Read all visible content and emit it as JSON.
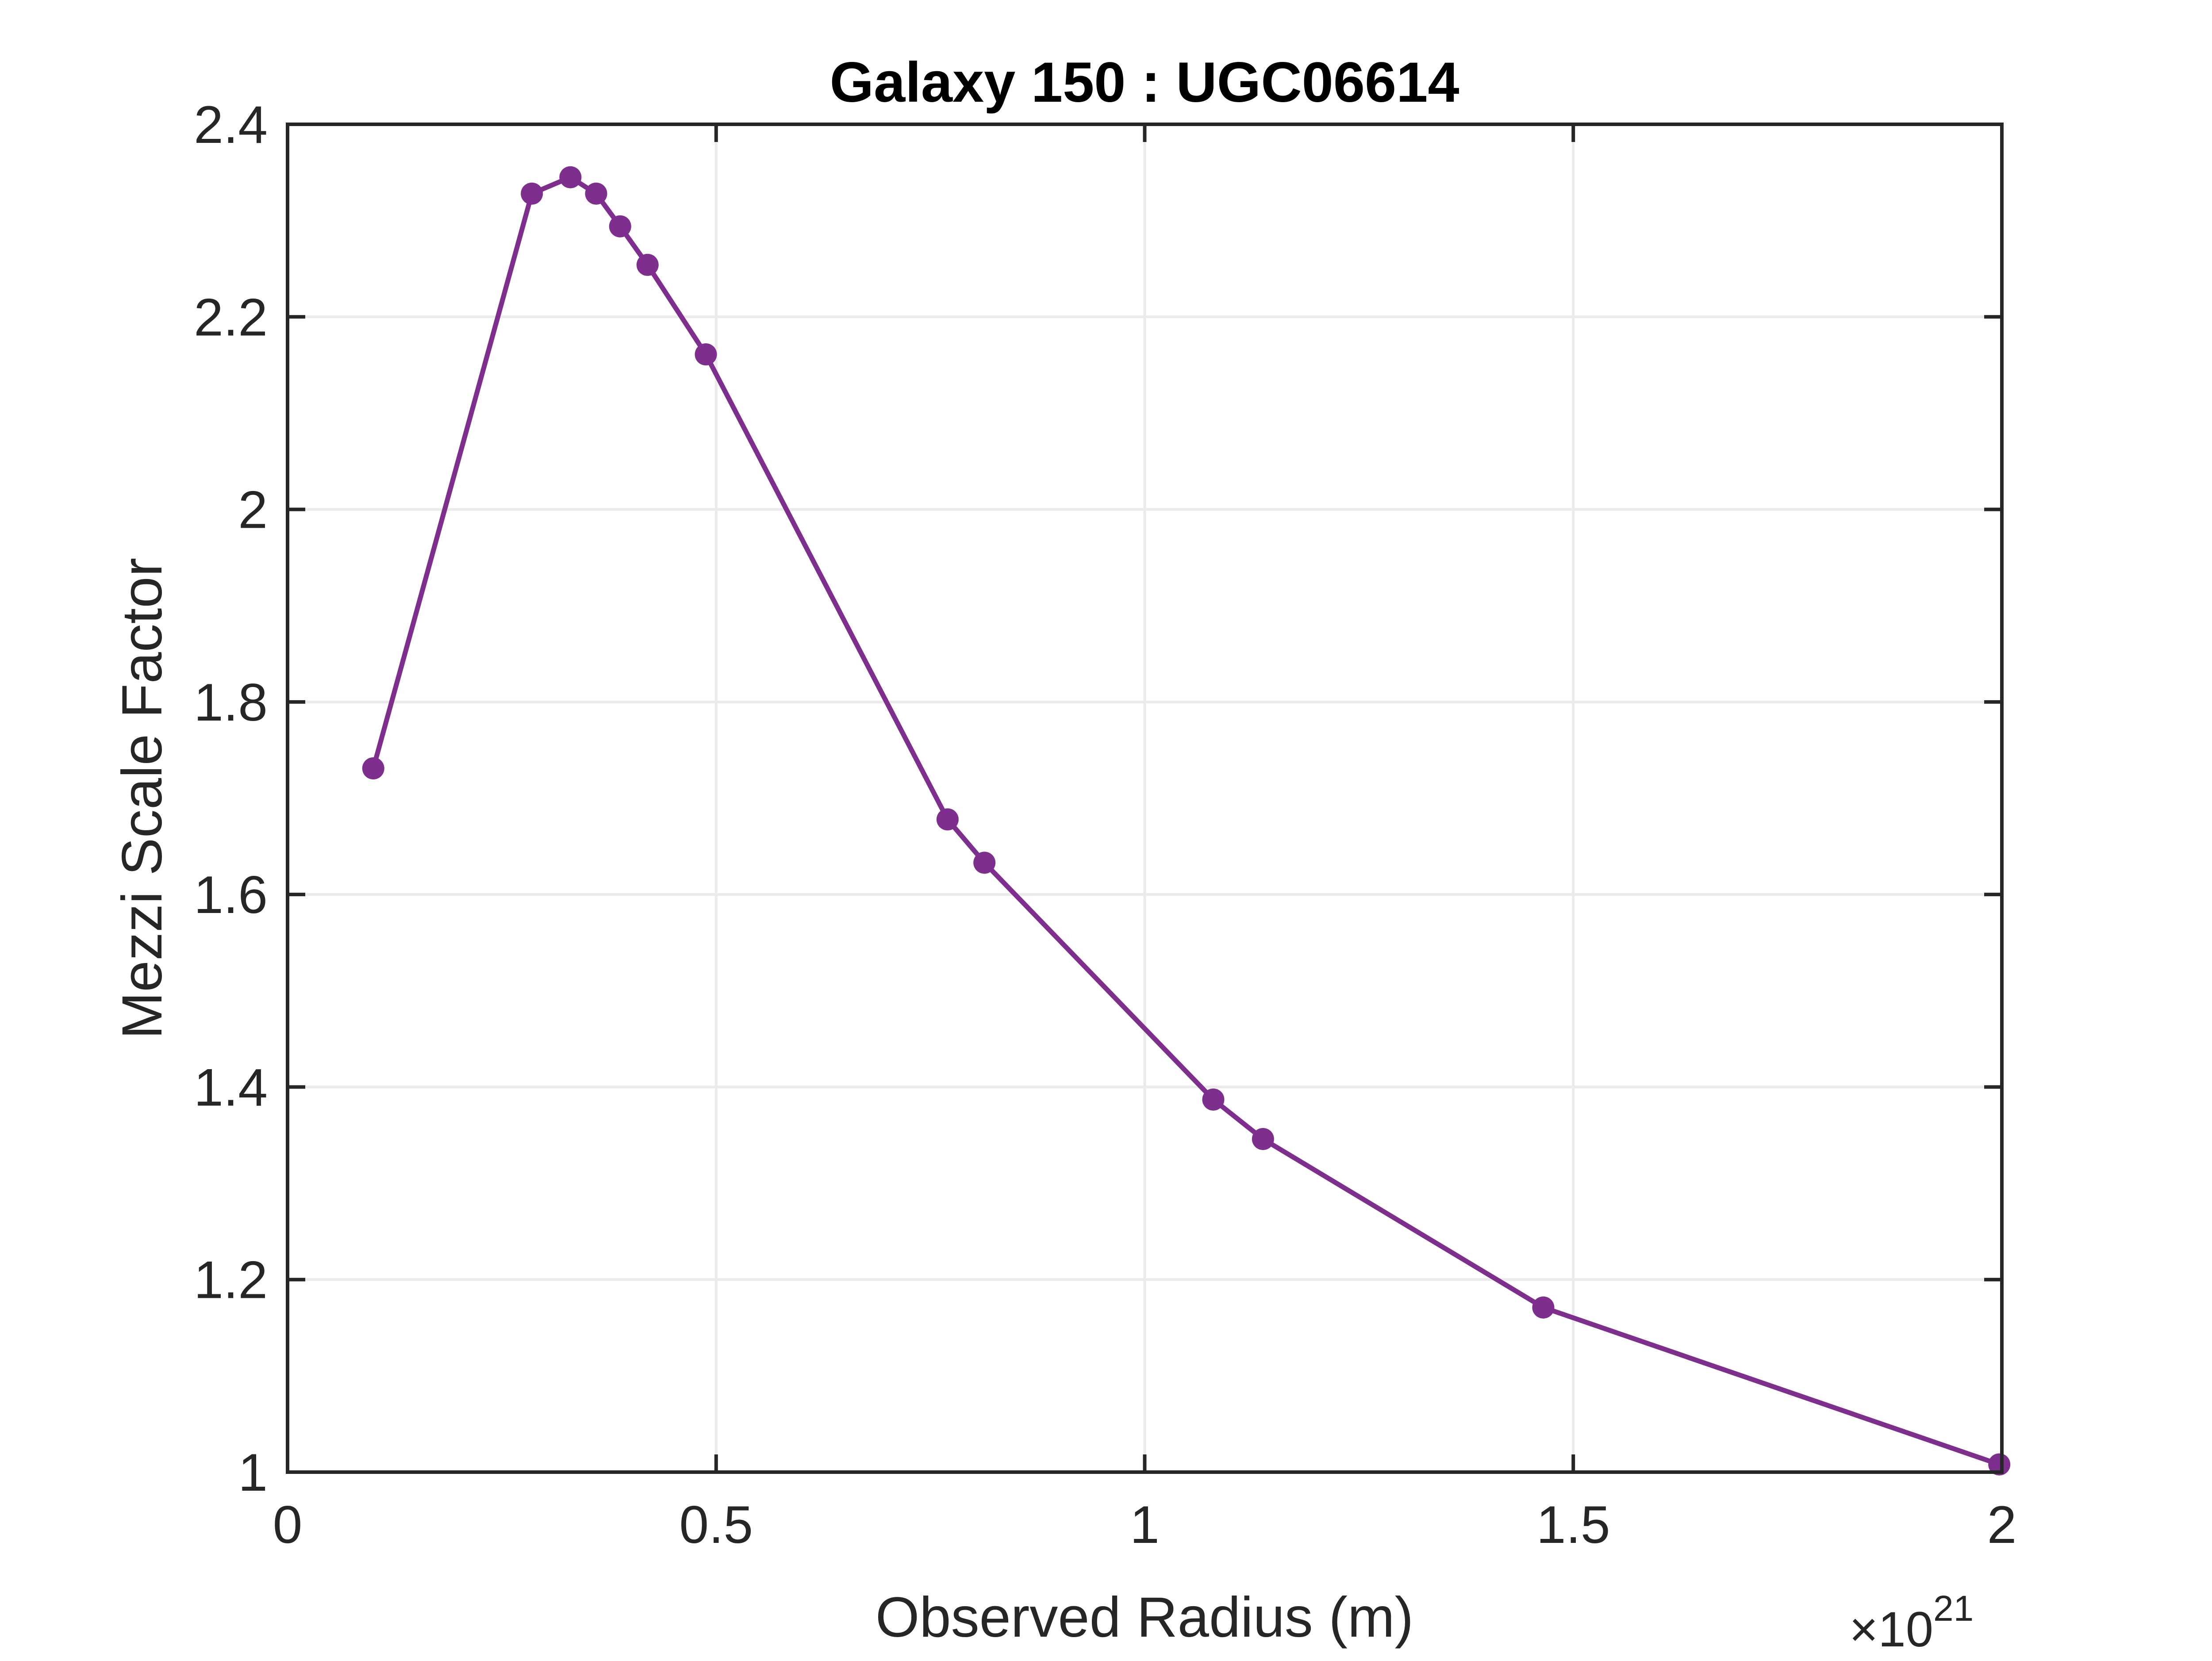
{
  "chart_data": {
    "type": "line",
    "title": "Galaxy 150 : UGC06614",
    "xlabel": "Observed Radius (m)",
    "ylabel": "Mezzi Scale Factor",
    "x_exponent_base": "×10",
    "x_exponent_power": "21",
    "xlim": [
      0,
      2
    ],
    "ylim": [
      1,
      2.4
    ],
    "xticks": [
      0,
      0.5,
      1,
      1.5,
      2
    ],
    "xtick_labels": [
      "0",
      "0.5",
      "1",
      "1.5",
      "2"
    ],
    "yticks": [
      1,
      1.2,
      1.4,
      1.6,
      1.8,
      2,
      2.2,
      2.4
    ],
    "ytick_labels": [
      "1",
      "1.2",
      "1.4",
      "1.6",
      "1.8",
      "2",
      "2.2",
      "2.4"
    ],
    "grid": true,
    "series": [
      {
        "color": "#7e2f8e",
        "marker": "circle",
        "x": [
          0.1,
          0.285,
          0.33,
          0.36,
          0.388,
          0.42,
          0.488,
          0.77,
          0.813,
          1.08,
          1.138,
          1.465,
          1.997
        ],
        "y": [
          1.731,
          2.328,
          2.345,
          2.328,
          2.294,
          2.254,
          2.161,
          1.678,
          1.633,
          1.387,
          1.346,
          1.171,
          1.008
        ]
      }
    ]
  }
}
